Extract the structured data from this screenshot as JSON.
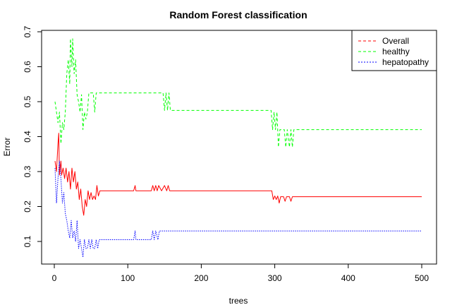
{
  "chart_data": {
    "type": "line",
    "title": "Random Forest classification",
    "xlabel": "trees",
    "ylabel": "Error",
    "xlim": [
      0,
      500
    ],
    "ylim": [
      0.05,
      0.7
    ],
    "x_ticks": [
      0,
      100,
      200,
      300,
      400,
      500
    ],
    "y_ticks": [
      0.1,
      0.2,
      0.3,
      0.4,
      0.5,
      0.6,
      0.7
    ],
    "legend_position": "top-right",
    "grid": false,
    "series": [
      {
        "name": "Overall",
        "color": "#ff0000",
        "dash": "solid",
        "points": [
          [
            1,
            0.33
          ],
          [
            3,
            0.3
          ],
          [
            5,
            0.38
          ],
          [
            6,
            0.41
          ],
          [
            7,
            0.29
          ],
          [
            9,
            0.33
          ],
          [
            10,
            0.29
          ],
          [
            12,
            0.31
          ],
          [
            14,
            0.28
          ],
          [
            16,
            0.31
          ],
          [
            18,
            0.27
          ],
          [
            20,
            0.3
          ],
          [
            22,
            0.25
          ],
          [
            24,
            0.31
          ],
          [
            26,
            0.27
          ],
          [
            28,
            0.3
          ],
          [
            30,
            0.25
          ],
          [
            32,
            0.27
          ],
          [
            34,
            0.22
          ],
          [
            36,
            0.25
          ],
          [
            38,
            0.2
          ],
          [
            40,
            0.175
          ],
          [
            42,
            0.22
          ],
          [
            44,
            0.2
          ],
          [
            46,
            0.245
          ],
          [
            48,
            0.22
          ],
          [
            50,
            0.24
          ],
          [
            52,
            0.22
          ],
          [
            54,
            0.23
          ],
          [
            56,
            0.22
          ],
          [
            58,
            0.26
          ],
          [
            60,
            0.23
          ],
          [
            62,
            0.245
          ],
          [
            108,
            0.245
          ],
          [
            110,
            0.26
          ],
          [
            111,
            0.245
          ],
          [
            132,
            0.245
          ],
          [
            134,
            0.26
          ],
          [
            136,
            0.245
          ],
          [
            138,
            0.26
          ],
          [
            140,
            0.245
          ],
          [
            142,
            0.26
          ],
          [
            146,
            0.245
          ],
          [
            150,
            0.26
          ],
          [
            153,
            0.245
          ],
          [
            155,
            0.26
          ],
          [
            157,
            0.245
          ],
          [
            296,
            0.245
          ],
          [
            298,
            0.22
          ],
          [
            300,
            0.23
          ],
          [
            302,
            0.22
          ],
          [
            304,
            0.23
          ],
          [
            306,
            0.21
          ],
          [
            308,
            0.228
          ],
          [
            312,
            0.228
          ],
          [
            314,
            0.215
          ],
          [
            316,
            0.228
          ],
          [
            320,
            0.228
          ],
          [
            322,
            0.215
          ],
          [
            324,
            0.228
          ],
          [
            500,
            0.228
          ]
        ]
      },
      {
        "name": "healthy",
        "color": "#00ff00",
        "dash": "dashed",
        "points": [
          [
            1,
            0.5
          ],
          [
            3,
            0.47
          ],
          [
            5,
            0.44
          ],
          [
            7,
            0.47
          ],
          [
            9,
            0.38
          ],
          [
            11,
            0.44
          ],
          [
            13,
            0.42
          ],
          [
            15,
            0.47
          ],
          [
            17,
            0.58
          ],
          [
            19,
            0.62
          ],
          [
            21,
            0.55
          ],
          [
            22,
            0.68
          ],
          [
            24,
            0.6
          ],
          [
            25,
            0.68
          ],
          [
            27,
            0.58
          ],
          [
            29,
            0.62
          ],
          [
            31,
            0.52
          ],
          [
            33,
            0.5
          ],
          [
            35,
            0.47
          ],
          [
            37,
            0.52
          ],
          [
            39,
            0.42
          ],
          [
            41,
            0.47
          ],
          [
            43,
            0.45
          ],
          [
            45,
            0.47
          ],
          [
            47,
            0.525
          ],
          [
            53,
            0.525
          ],
          [
            55,
            0.47
          ],
          [
            57,
            0.525
          ],
          [
            148,
            0.525
          ],
          [
            150,
            0.475
          ],
          [
            152,
            0.525
          ],
          [
            154,
            0.475
          ],
          [
            156,
            0.525
          ],
          [
            158,
            0.475
          ],
          [
            295,
            0.475
          ],
          [
            297,
            0.42
          ],
          [
            299,
            0.47
          ],
          [
            301,
            0.42
          ],
          [
            303,
            0.47
          ],
          [
            305,
            0.37
          ],
          [
            307,
            0.42
          ],
          [
            313,
            0.42
          ],
          [
            315,
            0.37
          ],
          [
            317,
            0.42
          ],
          [
            320,
            0.37
          ],
          [
            322,
            0.42
          ],
          [
            324,
            0.37
          ],
          [
            326,
            0.42
          ],
          [
            500,
            0.42
          ]
        ]
      },
      {
        "name": "hepatopathy",
        "color": "#0000ff",
        "dash": "dotted",
        "points": [
          [
            1,
            0.31
          ],
          [
            3,
            0.21
          ],
          [
            5,
            0.28
          ],
          [
            7,
            0.33
          ],
          [
            9,
            0.28
          ],
          [
            11,
            0.21
          ],
          [
            13,
            0.24
          ],
          [
            15,
            0.18
          ],
          [
            17,
            0.16
          ],
          [
            19,
            0.13
          ],
          [
            21,
            0.11
          ],
          [
            23,
            0.16
          ],
          [
            25,
            0.11
          ],
          [
            27,
            0.13
          ],
          [
            29,
            0.1
          ],
          [
            31,
            0.16
          ],
          [
            33,
            0.08
          ],
          [
            35,
            0.105
          ],
          [
            37,
            0.08
          ],
          [
            39,
            0.055
          ],
          [
            41,
            0.105
          ],
          [
            43,
            0.08
          ],
          [
            45,
            0.08
          ],
          [
            47,
            0.105
          ],
          [
            49,
            0.08
          ],
          [
            51,
            0.105
          ],
          [
            53,
            0.08
          ],
          [
            55,
            0.08
          ],
          [
            57,
            0.105
          ],
          [
            59,
            0.08
          ],
          [
            61,
            0.105
          ],
          [
            108,
            0.105
          ],
          [
            110,
            0.13
          ],
          [
            111,
            0.105
          ],
          [
            132,
            0.105
          ],
          [
            134,
            0.13
          ],
          [
            136,
            0.105
          ],
          [
            138,
            0.13
          ],
          [
            141,
            0.105
          ],
          [
            143,
            0.13
          ],
          [
            500,
            0.13
          ]
        ]
      }
    ]
  }
}
